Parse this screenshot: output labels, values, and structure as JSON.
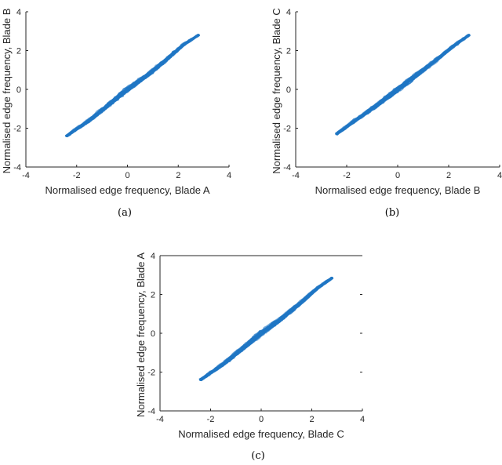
{
  "colors": {
    "series": "#1f77c4",
    "axis": "#262626",
    "background": "#ffffff"
  },
  "chart_data": [
    {
      "type": "scatter",
      "caption": "(a)",
      "title": "",
      "xlabel": "Normalised edge frequency, Blade A",
      "ylabel": "Normalised edge frequency, Blade B",
      "xlim": [
        -4,
        4
      ],
      "ylim": [
        -4,
        4
      ],
      "xticks": [
        "-4",
        "-2",
        "0",
        "2",
        "4"
      ],
      "yticks": [
        "-4",
        "-2",
        "0",
        "2",
        "4"
      ],
      "grid": false,
      "legend": "none",
      "series": [
        {
          "values": [
            [
              -2.4,
              -2.4
            ],
            [
              -1.5,
              -1.6
            ],
            [
              -0.8,
              -0.85
            ],
            [
              0,
              0
            ],
            [
              0.8,
              0.75
            ],
            [
              1.5,
              1.5
            ],
            [
              2.2,
              2.3
            ],
            [
              2.8,
              2.8
            ]
          ]
        }
      ]
    },
    {
      "type": "scatter",
      "caption": "(b)",
      "title": "",
      "xlabel": "Normalised edge frequency, Blade B",
      "ylabel": "Normalised edge frequency, Blade C",
      "xlim": [
        -4,
        4
      ],
      "ylim": [
        -4,
        4
      ],
      "xticks": [
        "-4",
        "-2",
        "0",
        "2",
        "4"
      ],
      "yticks": [
        "-4",
        "-2",
        "0",
        "2",
        "4"
      ],
      "grid": false,
      "legend": "none",
      "series": [
        {
          "values": [
            [
              -2.4,
              -2.3
            ],
            [
              -1.5,
              -1.45
            ],
            [
              -0.8,
              -0.8
            ],
            [
              0,
              0
            ],
            [
              0.8,
              0.8
            ],
            [
              1.5,
              1.5
            ],
            [
              2.2,
              2.25
            ],
            [
              2.8,
              2.8
            ]
          ]
        }
      ]
    },
    {
      "type": "scatter",
      "caption": "(c)",
      "title": "",
      "xlabel": "Normalised edge frequency, Blade C",
      "ylabel": "Normalised edge frequency, Blade A",
      "xlim": [
        -4,
        4
      ],
      "ylim": [
        -4,
        4
      ],
      "xticks": [
        "-4",
        "-2",
        "0",
        "2",
        "4"
      ],
      "yticks": [
        "-4",
        "-2",
        "0",
        "2",
        "4"
      ],
      "grid": false,
      "legend": "none",
      "series": [
        {
          "values": [
            [
              -2.4,
              -2.4
            ],
            [
              -1.5,
              -1.6
            ],
            [
              -0.8,
              -0.85
            ],
            [
              0,
              0
            ],
            [
              0.8,
              0.75
            ],
            [
              1.5,
              1.5
            ],
            [
              2.2,
              2.3
            ],
            [
              2.8,
              2.85
            ]
          ]
        }
      ]
    }
  ]
}
